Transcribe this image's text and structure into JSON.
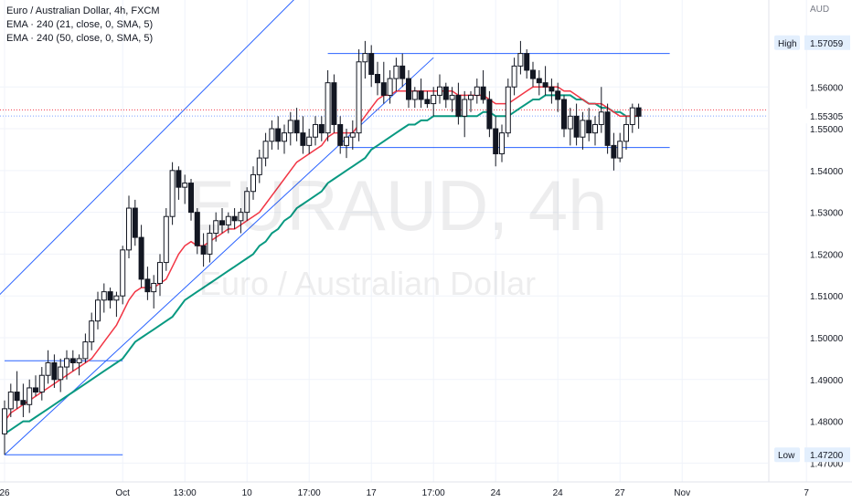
{
  "legend": {
    "symbol": "Euro / Australian Dollar, 4h, FXCM",
    "ema1": "EMA · 240 (21, close, 0, SMA, 5)",
    "ema2": "EMA · 240 (50, close, 0, SMA, 5)"
  },
  "currency": "AUD",
  "watermark": {
    "title": "EURAUD, 4h",
    "subtitle": "Euro / Australian Dollar"
  },
  "colors": {
    "up": "#ffffff",
    "down": "#131722",
    "wick": "#131722",
    "ema_fast": "#f23645",
    "ema_slow": "#089981",
    "drawing": "#2962ff",
    "grid": "#f0f3fa",
    "axis_text": "#131722",
    "last_price_line": "#f23645",
    "close_line": "#2962ff"
  },
  "chart_data": {
    "type": "candlestick",
    "symbol": "EURAUD",
    "timeframe": "4h",
    "ylim": [
      1.4655,
      1.5808
    ],
    "y_ticks": [
      1.47,
      1.48,
      1.49,
      1.5,
      1.51,
      1.52,
      1.53,
      1.54,
      1.55,
      1.56
    ],
    "y_tick_labels": [
      "1.47000",
      "1.48000",
      "1.49000",
      "1.50000",
      "1.51000",
      "1.52000",
      "1.53000",
      "1.54000",
      "1.55000",
      "1.56000"
    ],
    "x_labels": [
      {
        "label": "26",
        "index": 0
      },
      {
        "label": "Oct",
        "index": 19
      },
      {
        "label": "13:00",
        "index": 29
      },
      {
        "label": "10",
        "index": 39
      },
      {
        "label": "17:00",
        "index": 49
      },
      {
        "label": "17",
        "index": 59
      },
      {
        "label": "17:00",
        "index": 69
      },
      {
        "label": "24",
        "index": 79
      },
      {
        "label": "24",
        "index": 89
      },
      {
        "label": "27",
        "index": 99
      },
      {
        "label": "Nov",
        "index": 109
      },
      {
        "label": "7",
        "index": 129
      }
    ],
    "price_labels": {
      "high": {
        "text": "High",
        "value": 1.57059,
        "value_text": "1.57059"
      },
      "low": {
        "text": "Low",
        "value": 1.472,
        "value_text": "1.47200"
      },
      "last": {
        "value": 1.55305,
        "value_text": "1.55305"
      }
    },
    "candles": [
      [
        1.477,
        1.485,
        1.472,
        1.483
      ],
      [
        1.483,
        1.489,
        1.481,
        1.487
      ],
      [
        1.487,
        1.492,
        1.483,
        1.485
      ],
      [
        1.485,
        1.489,
        1.481,
        1.484
      ],
      [
        1.484,
        1.49,
        1.482,
        1.488
      ],
      [
        1.488,
        1.491,
        1.486,
        1.487
      ],
      [
        1.487,
        1.493,
        1.485,
        1.491
      ],
      [
        1.491,
        1.497,
        1.489,
        1.494
      ],
      [
        1.494,
        1.496,
        1.488,
        1.49
      ],
      [
        1.49,
        1.495,
        1.487,
        1.493
      ],
      [
        1.493,
        1.497,
        1.49,
        1.495
      ],
      [
        1.495,
        1.497,
        1.492,
        1.494
      ],
      [
        1.494,
        1.496,
        1.491,
        1.495
      ],
      [
        1.495,
        1.501,
        1.494,
        1.499
      ],
      [
        1.499,
        1.506,
        1.497,
        1.504
      ],
      [
        1.504,
        1.511,
        1.502,
        1.509
      ],
      [
        1.509,
        1.513,
        1.506,
        1.511
      ],
      [
        1.511,
        1.512,
        1.507,
        1.509
      ],
      [
        1.509,
        1.511,
        1.505,
        1.51
      ],
      [
        1.51,
        1.522,
        1.508,
        1.521
      ],
      [
        1.521,
        1.534,
        1.519,
        1.531
      ],
      [
        1.531,
        1.533,
        1.522,
        1.524
      ],
      [
        1.524,
        1.527,
        1.512,
        1.514
      ],
      [
        1.514,
        1.517,
        1.509,
        1.511
      ],
      [
        1.511,
        1.515,
        1.507,
        1.513
      ],
      [
        1.513,
        1.52,
        1.51,
        1.518
      ],
      [
        1.518,
        1.531,
        1.516,
        1.529
      ],
      [
        1.529,
        1.542,
        1.527,
        1.54
      ],
      [
        1.54,
        1.541,
        1.533,
        1.536
      ],
      [
        1.536,
        1.539,
        1.532,
        1.537
      ],
      [
        1.537,
        1.538,
        1.528,
        1.53
      ],
      [
        1.53,
        1.531,
        1.52,
        1.522
      ],
      [
        1.522,
        1.525,
        1.517,
        1.52
      ],
      [
        1.52,
        1.527,
        1.518,
        1.525
      ],
      [
        1.525,
        1.53,
        1.523,
        1.528
      ],
      [
        1.528,
        1.531,
        1.525,
        1.527
      ],
      [
        1.527,
        1.53,
        1.525,
        1.529
      ],
      [
        1.529,
        1.531,
        1.526,
        1.528
      ],
      [
        1.528,
        1.531,
        1.525,
        1.53
      ],
      [
        1.53,
        1.536,
        1.528,
        1.535
      ],
      [
        1.535,
        1.541,
        1.533,
        1.539
      ],
      [
        1.539,
        1.545,
        1.537,
        1.543
      ],
      [
        1.543,
        1.549,
        1.541,
        1.547
      ],
      [
        1.547,
        1.552,
        1.545,
        1.55
      ],
      [
        1.55,
        1.553,
        1.545,
        1.547
      ],
      [
        1.547,
        1.551,
        1.544,
        1.549
      ],
      [
        1.549,
        1.554,
        1.546,
        1.552
      ],
      [
        1.552,
        1.555,
        1.547,
        1.549
      ],
      [
        1.549,
        1.553,
        1.544,
        1.546
      ],
      [
        1.546,
        1.55,
        1.544,
        1.548
      ],
      [
        1.548,
        1.553,
        1.546,
        1.551
      ],
      [
        1.551,
        1.553,
        1.547,
        1.549
      ],
      [
        1.549,
        1.564,
        1.547,
        1.561
      ],
      [
        1.561,
        1.563,
        1.549,
        1.551
      ],
      [
        1.551,
        1.553,
        1.544,
        1.546
      ],
      [
        1.546,
        1.55,
        1.543,
        1.548
      ],
      [
        1.548,
        1.552,
        1.545,
        1.549
      ],
      [
        1.549,
        1.569,
        1.547,
        1.566
      ],
      [
        1.566,
        1.571,
        1.562,
        1.568
      ],
      [
        1.568,
        1.57,
        1.56,
        1.563
      ],
      [
        1.563,
        1.566,
        1.558,
        1.561
      ],
      [
        1.561,
        1.566,
        1.556,
        1.558
      ],
      [
        1.558,
        1.564,
        1.556,
        1.562
      ],
      [
        1.562,
        1.567,
        1.559,
        1.565
      ],
      [
        1.565,
        1.568,
        1.56,
        1.562
      ],
      [
        1.562,
        1.564,
        1.555,
        1.557
      ],
      [
        1.557,
        1.56,
        1.555,
        1.559
      ],
      [
        1.559,
        1.562,
        1.555,
        1.557
      ],
      [
        1.557,
        1.559,
        1.555,
        1.556
      ],
      [
        1.556,
        1.56,
        1.553,
        1.558
      ],
      [
        1.558,
        1.563,
        1.556,
        1.56
      ],
      [
        1.56,
        1.561,
        1.555,
        1.557
      ],
      [
        1.557,
        1.56,
        1.554,
        1.558
      ],
      [
        1.558,
        1.561,
        1.551,
        1.553
      ],
      [
        1.553,
        1.559,
        1.548,
        1.557
      ],
      [
        1.557,
        1.559,
        1.554,
        1.558
      ],
      [
        1.558,
        1.562,
        1.556,
        1.56
      ],
      [
        1.56,
        1.564,
        1.556,
        1.557
      ],
      [
        1.557,
        1.559,
        1.548,
        1.55
      ],
      [
        1.55,
        1.553,
        1.541,
        1.544
      ],
      [
        1.544,
        1.551,
        1.542,
        1.549
      ],
      [
        1.549,
        1.562,
        1.548,
        1.56
      ],
      [
        1.56,
        1.567,
        1.558,
        1.565
      ],
      [
        1.565,
        1.571,
        1.563,
        1.568
      ],
      [
        1.568,
        1.569,
        1.562,
        1.564
      ],
      [
        1.564,
        1.566,
        1.56,
        1.562
      ],
      [
        1.562,
        1.564,
        1.558,
        1.561
      ],
      [
        1.561,
        1.565,
        1.558,
        1.56
      ],
      [
        1.56,
        1.562,
        1.556,
        1.559
      ],
      [
        1.559,
        1.561,
        1.554,
        1.557
      ],
      [
        1.557,
        1.558,
        1.548,
        1.55
      ],
      [
        1.55,
        1.555,
        1.546,
        1.553
      ],
      [
        1.553,
        1.556,
        1.546,
        1.548
      ],
      [
        1.548,
        1.554,
        1.545,
        1.552
      ],
      [
        1.552,
        1.555,
        1.547,
        1.549
      ],
      [
        1.549,
        1.553,
        1.546,
        1.551
      ],
      [
        1.551,
        1.56,
        1.549,
        1.554
      ],
      [
        1.554,
        1.556,
        1.544,
        1.546
      ],
      [
        1.546,
        1.549,
        1.54,
        1.543
      ],
      [
        1.543,
        1.549,
        1.542,
        1.547
      ],
      [
        1.547,
        1.553,
        1.545,
        1.551
      ],
      [
        1.551,
        1.556,
        1.549,
        1.555
      ],
      [
        1.555,
        1.556,
        1.55,
        1.553
      ]
    ],
    "ema_fast": [
      1.48,
      1.482,
      1.483,
      1.484,
      1.485,
      1.486,
      1.487,
      1.488,
      1.489,
      1.49,
      1.491,
      1.492,
      1.493,
      1.494,
      1.495,
      1.497,
      1.499,
      1.501,
      1.503,
      1.506,
      1.509,
      1.511,
      1.512,
      1.512,
      1.512,
      1.513,
      1.514,
      1.517,
      1.52,
      1.522,
      1.523,
      1.522,
      1.522,
      1.523,
      1.524,
      1.525,
      1.526,
      1.526,
      1.527,
      1.528,
      1.529,
      1.53,
      1.532,
      1.534,
      1.536,
      1.538,
      1.54,
      1.542,
      1.543,
      1.544,
      1.545,
      1.546,
      1.548,
      1.549,
      1.549,
      1.549,
      1.549,
      1.551,
      1.553,
      1.555,
      1.557,
      1.558,
      1.558,
      1.559,
      1.559,
      1.559,
      1.559,
      1.559,
      1.559,
      1.559,
      1.559,
      1.559,
      1.559,
      1.558,
      1.558,
      1.558,
      1.558,
      1.558,
      1.557,
      1.556,
      1.556,
      1.556,
      1.557,
      1.558,
      1.559,
      1.56,
      1.56,
      1.56,
      1.56,
      1.56,
      1.559,
      1.559,
      1.558,
      1.557,
      1.556,
      1.556,
      1.556,
      1.555,
      1.554,
      1.553,
      1.553,
      1.553,
      1.553
    ],
    "ema_slow": [
      1.477,
      1.478,
      1.479,
      1.48,
      1.48,
      1.481,
      1.482,
      1.483,
      1.484,
      1.485,
      1.486,
      1.487,
      1.488,
      1.489,
      1.49,
      1.491,
      1.492,
      1.493,
      1.494,
      1.495,
      1.497,
      1.499,
      1.5,
      1.501,
      1.502,
      1.503,
      1.504,
      1.505,
      1.507,
      1.509,
      1.51,
      1.511,
      1.512,
      1.513,
      1.514,
      1.515,
      1.516,
      1.517,
      1.518,
      1.519,
      1.52,
      1.522,
      1.523,
      1.525,
      1.526,
      1.528,
      1.529,
      1.531,
      1.532,
      1.533,
      1.534,
      1.535,
      1.537,
      1.538,
      1.539,
      1.54,
      1.541,
      1.542,
      1.543,
      1.545,
      1.546,
      1.547,
      1.548,
      1.549,
      1.55,
      1.551,
      1.551,
      1.552,
      1.552,
      1.553,
      1.553,
      1.553,
      1.553,
      1.553,
      1.553,
      1.553,
      1.553,
      1.554,
      1.554,
      1.553,
      1.553,
      1.553,
      1.554,
      1.555,
      1.556,
      1.557,
      1.557,
      1.558,
      1.558,
      1.558,
      1.558,
      1.558,
      1.557,
      1.557,
      1.556,
      1.556,
      1.555,
      1.555,
      1.554,
      1.554,
      1.553,
      1.553,
      1.553
    ],
    "drawings": {
      "upper_channel": [
        [
          -1,
          1.51
        ],
        [
          52,
          1.589
        ]
      ],
      "lower_channel": [
        [
          0,
          1.472
        ],
        [
          69,
          1.567
        ]
      ],
      "resistance": [
        [
          52,
          1.568
        ],
        [
          107,
          1.568
        ]
      ],
      "support": [
        [
          54,
          1.5455
        ],
        [
          107,
          1.5455
        ]
      ],
      "left_box_top": [
        [
          0,
          1.4945
        ],
        [
          19,
          1.4945
        ]
      ],
      "left_box_bottom": [
        [
          0,
          1.472
        ],
        [
          19,
          1.472
        ]
      ],
      "last_price": 1.5545,
      "close_price": 1.55305
    }
  }
}
